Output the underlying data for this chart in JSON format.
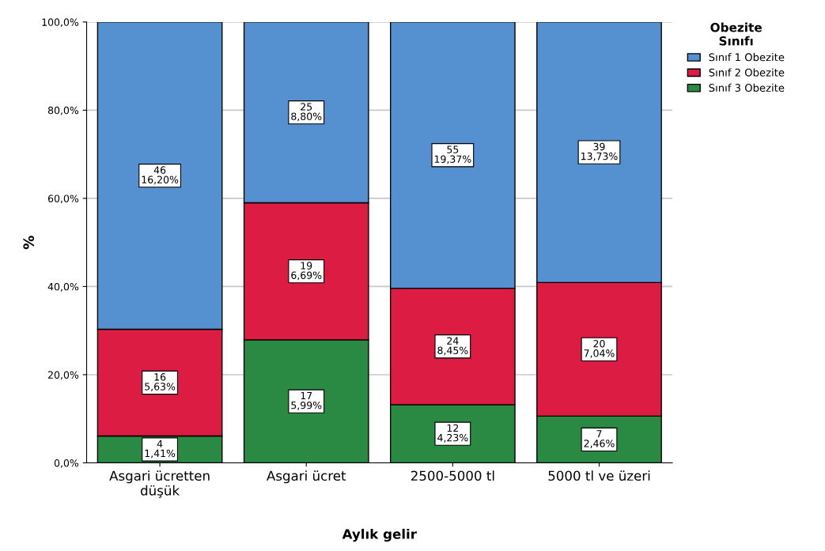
{
  "chart_data": {
    "type": "bar",
    "stacked": true,
    "xlabel": "Aylık gelir",
    "ylabel": "%",
    "legend_title": "Obezite\nSınıfı",
    "legend": "top right",
    "grid": "y",
    "categories": [
      "Asgari ücretten\ndüşük",
      "Asgari ücret",
      "2500-5000 tl",
      "5000 tl ve üzeri"
    ],
    "ylim": [
      0,
      100
    ],
    "yticks": [
      {
        "value": 0,
        "label": "0,0%"
      },
      {
        "value": 20,
        "label": "20,0%"
      },
      {
        "value": 40,
        "label": "40,0%"
      },
      {
        "value": 60,
        "label": "60,0%"
      },
      {
        "value": 80,
        "label": "80,0%"
      },
      {
        "value": 100,
        "label": "100,0%"
      }
    ],
    "series": [
      {
        "name": "Sınıf 3 Obezite",
        "color": "#2a8a43",
        "values": [
          6.1,
          27.9,
          13.2,
          10.6
        ]
      },
      {
        "name": "Sınıf 2 Obezite",
        "color": "#dc1c43",
        "values": [
          24.2,
          31.1,
          26.4,
          30.3
        ]
      },
      {
        "name": "Sınıf 1 Obezite",
        "color": "#5590d0",
        "values": [
          69.7,
          41.0,
          60.4,
          59.1
        ]
      }
    ],
    "annotations": [
      "4\n1,41%",
      "17\n5,99%",
      "12\n4,23%",
      "7\n2,46%",
      "16\n5,63%",
      "19\n6,69%",
      "24\n8,45%",
      "20\n7,04%",
      "46\n16,20%",
      "25\n8,80%",
      "55\n19,37%",
      "39\n13,73%"
    ]
  }
}
